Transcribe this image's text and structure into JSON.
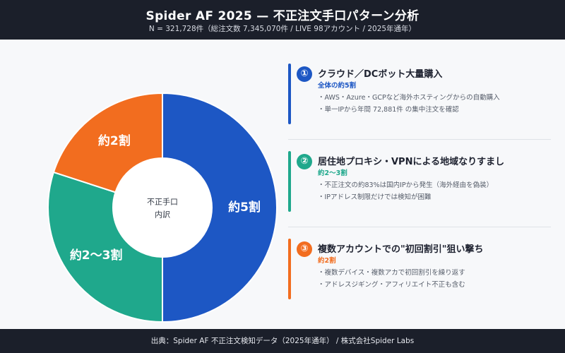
{
  "header": {
    "title": "Spider AF 2025 — 不正注文手口パターン分析",
    "subtitle": "N = 321,728件（総注文数 7,345,070件 / LIVE 98アカウント / 2025年通年）"
  },
  "chart_data": {
    "type": "pie",
    "donut": true,
    "center_label": [
      "不正手口",
      "内訳"
    ],
    "slices": [
      {
        "label": "約5割",
        "value": 50,
        "color": "#1d57c4"
      },
      {
        "label": "約2〜3割",
        "value": 30,
        "color": "#1fa88c"
      },
      {
        "label": "約2割",
        "value": 20,
        "color": "#f26d1f"
      }
    ]
  },
  "items": [
    {
      "num": "①",
      "title": "クラウド／DCボット大量購入",
      "share": "全体の約5割",
      "bullets": [
        "・AWS・Azure・GCPなど海外ホスティングからの自動購入",
        "・単一IPから年間 72,881件 の集中注文を確認"
      ],
      "color": "#1d57c4"
    },
    {
      "num": "②",
      "title": "居住地プロキシ・VPNによる地域なりすまし",
      "share": "約2〜3割",
      "bullets": [
        "・不正注文の約83%は国内IPから発生（海外経由を偽装）",
        "・IPアドレス制限だけでは検知が困難"
      ],
      "color": "#1fa88c"
    },
    {
      "num": "③",
      "title": "複数アカウントでの\"初回割引\"狙い撃ち",
      "share": "約2割",
      "bullets": [
        "・複数デバイス・複数アカで初回割引を繰り返す",
        "・アドレスジギング・アフィリエイト不正も含む"
      ],
      "color": "#f26d1f"
    }
  ],
  "footer": {
    "source": "出典：Spider AF 不正注文検知データ（2025年通年） / 株式会社Spider Labs"
  }
}
